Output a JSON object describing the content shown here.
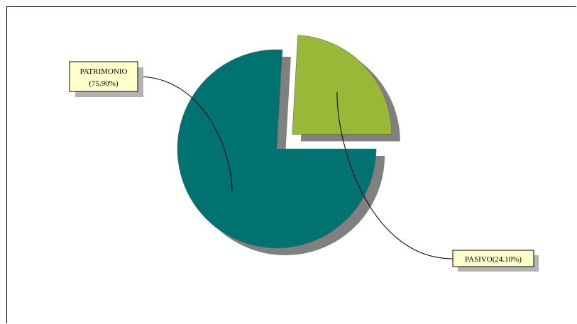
{
  "chart_data": {
    "type": "pie",
    "exploded": true,
    "shadow": true,
    "slices": [
      {
        "name": "PATRIMONIO",
        "percent": 75.9,
        "percent_label": "(75.90%)",
        "color": "#007370"
      },
      {
        "name": "PASIVO",
        "percent": 24.1,
        "combined_label": "PASIVO(24.10%)",
        "color": "#99b838"
      }
    ],
    "label_style": {
      "box_fill": "#ffffcc",
      "shadow": "#b3b3b3"
    }
  }
}
